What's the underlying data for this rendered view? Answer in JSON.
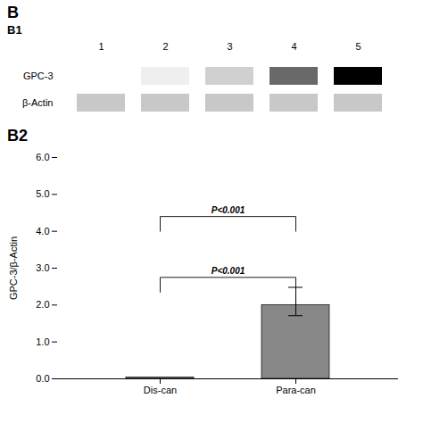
{
  "chart_data": [
    {
      "type": "heatmap",
      "title": "B",
      "subtitle": "B1",
      "x": [
        "1",
        "2",
        "3",
        "4",
        "5"
      ],
      "y": [
        "GPC-3",
        "β-Actin"
      ],
      "values": [
        [
          0.12,
          0.22,
          0.35,
          0.65,
          0.92
        ],
        [
          0.38,
          0.38,
          0.38,
          0.38,
          0.38
        ]
      ],
      "tick_labels": true
    },
    {
      "type": "bar",
      "title": "B2",
      "categories": [
        "Dis-can",
        "Para-can"
      ],
      "values": [
        0.04,
        2.0
      ],
      "error_low": [
        null,
        0.288
      ],
      "error_high": [
        null,
        0.48
      ],
      "color": "#888888",
      "ylabel": "GPC-3/β-Actin",
      "ylim": [
        0,
        6
      ],
      "yticks": [
        0,
        1,
        2,
        3,
        4,
        5,
        6
      ],
      "grid": false,
      "annotations": [
        {
          "text": "P<0.001",
          "from": "Dis-can",
          "to": "Para-can",
          "bracket": [
            2.35,
            2.75
          ]
        },
        {
          "text": "P<0.001",
          "from": "Dis-can",
          "to": "Para-can",
          "bracket": [
            4.0,
            4.4
          ]
        }
      ]
    }
  ]
}
